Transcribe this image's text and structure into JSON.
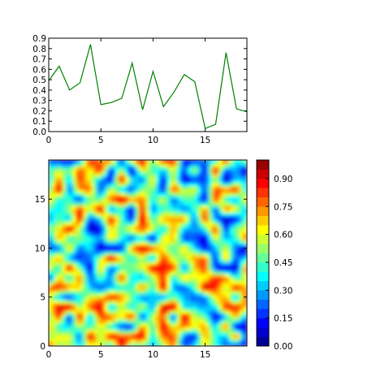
{
  "chart_data": [
    {
      "type": "line",
      "title": "",
      "xlabel": "",
      "ylabel": "",
      "xlim": [
        0,
        19
      ],
      "ylim": [
        0.0,
        0.9
      ],
      "grid": false,
      "line_color": "#008000",
      "x_ticks": [
        "0",
        "5",
        "10",
        "15"
      ],
      "x_tick_values": [
        0,
        5,
        10,
        15
      ],
      "y_ticks": [
        "0.0",
        "0.1",
        "0.2",
        "0.3",
        "0.4",
        "0.5",
        "0.6",
        "0.7",
        "0.8",
        "0.9"
      ],
      "y_tick_values": [
        0.0,
        0.1,
        0.2,
        0.3,
        0.4,
        0.5,
        0.6,
        0.7,
        0.8,
        0.9
      ],
      "series": [
        {
          "x": [
            0,
            1,
            2,
            3,
            4,
            5,
            6,
            7,
            8,
            9,
            10,
            11,
            12,
            13,
            14,
            15,
            16,
            17,
            18,
            19
          ],
          "values": [
            0.49,
            0.63,
            0.4,
            0.47,
            0.84,
            0.26,
            0.28,
            0.32,
            0.66,
            0.21,
            0.58,
            0.24,
            0.38,
            0.55,
            0.48,
            0.03,
            0.07,
            0.76,
            0.22,
            0.19
          ]
        }
      ]
    },
    {
      "type": "heatmap",
      "style": "filled contour",
      "title": "",
      "xlabel": "",
      "ylabel": "",
      "xlim": [
        0,
        19
      ],
      "ylim": [
        0,
        19
      ],
      "grid": false,
      "colormap": "jet",
      "x_ticks": [
        "0",
        "5",
        "10",
        "15"
      ],
      "x_tick_values": [
        0,
        5,
        10,
        15
      ],
      "y_ticks": [
        "0",
        "5",
        "10",
        "15"
      ],
      "y_tick_values": [
        0,
        5,
        10,
        15
      ],
      "colorbar": {
        "min": 0.0,
        "max": 1.0,
        "levels": 20,
        "ticks": [
          "0.00",
          "0.15",
          "0.30",
          "0.45",
          "0.60",
          "0.75",
          "0.90"
        ],
        "tick_values": [
          0.0,
          0.15,
          0.3,
          0.45,
          0.6,
          0.75,
          0.9
        ]
      },
      "grid_size": [
        20,
        20
      ]
    }
  ]
}
